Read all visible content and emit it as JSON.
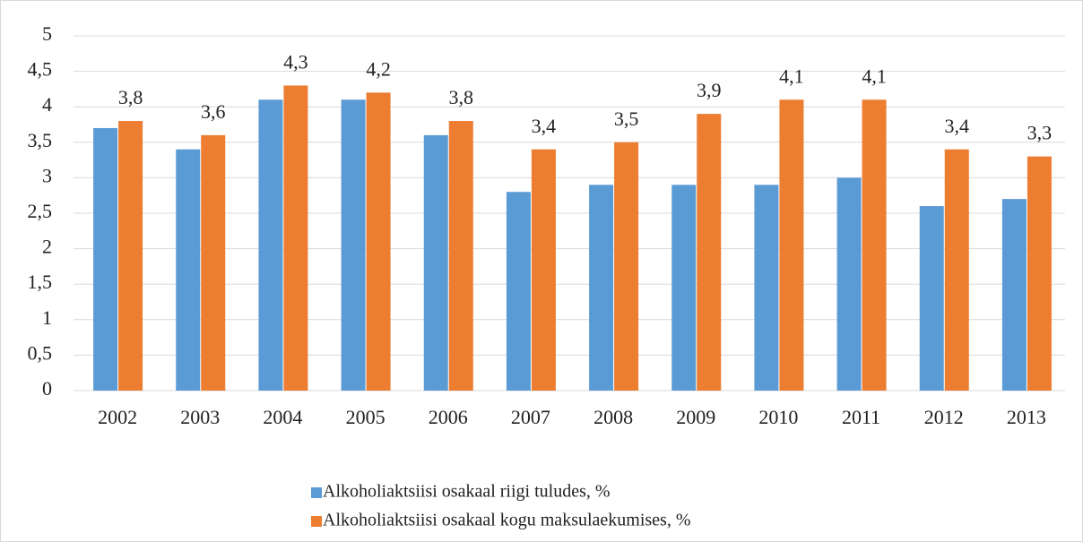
{
  "chart_data": {
    "type": "bar",
    "categories": [
      "2002",
      "2003",
      "2004",
      "2005",
      "2006",
      "2007",
      "2008",
      "2009",
      "2010",
      "2011",
      "2012",
      "2013"
    ],
    "series": [
      {
        "name": "Alkoholiaktsiisi osakaal riigi tuludes, %",
        "color": "#5b9bd5",
        "values": [
          3.7,
          3.4,
          4.1,
          4.1,
          3.6,
          2.8,
          2.9,
          2.9,
          2.9,
          3.0,
          2.6,
          2.7
        ]
      },
      {
        "name": "Alkoholiaktsiisi osakaal kogu maksulaekumises, %",
        "color": "#ed7d31",
        "values": [
          3.8,
          3.6,
          4.3,
          4.2,
          3.8,
          3.4,
          3.5,
          3.9,
          4.1,
          4.1,
          3.4,
          3.3
        ],
        "value_labels": [
          "3,8",
          "3,6",
          "4,3",
          "4,2",
          "3,8",
          "3,4",
          "3,5",
          "3,9",
          "4,1",
          "4,1",
          "3,4",
          "3,3"
        ]
      }
    ],
    "ylim": [
      0,
      5
    ],
    "yticks": [
      0,
      {
        "value": 0.5,
        "label": "0,5"
      },
      1,
      {
        "value": 1.5,
        "label": "1,5"
      },
      2,
      {
        "value": 2.5,
        "label": "2,5"
      },
      3,
      {
        "value": 3.5,
        "label": "3,5"
      },
      4,
      {
        "value": 4.5,
        "label": "4,5"
      },
      5
    ],
    "grid": true,
    "legend": "bottom"
  }
}
